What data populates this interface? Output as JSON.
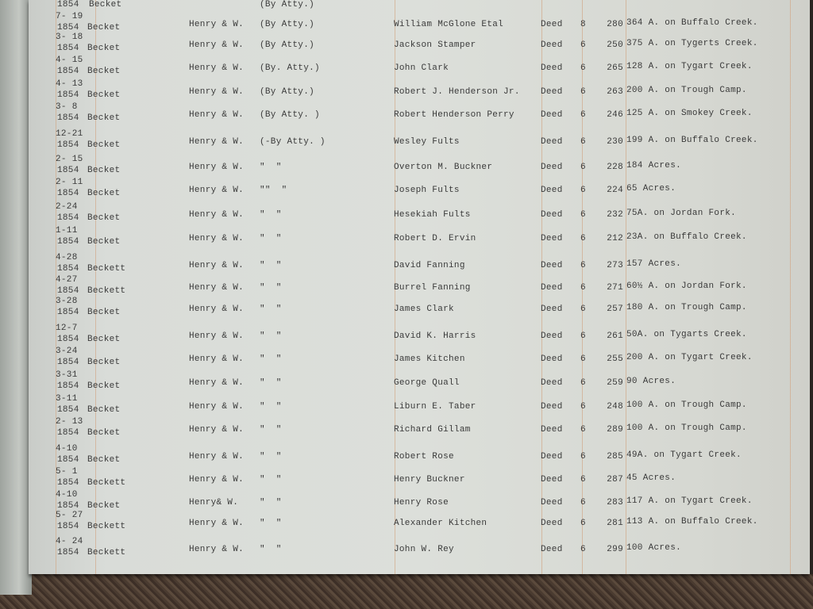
{
  "top_partial_row": {
    "year": "1854",
    "surname": "Becket",
    "note": "(By Atty.)"
  },
  "rows": [
    {
      "date": "7- 19",
      "year": "1854",
      "surname": "Becket",
      "grantor": "Henry & W.",
      "note": "(By Atty.)",
      "grantee": "William McGlone Etal",
      "type": "Deed",
      "book": "8",
      "page": "280",
      "description": "364 A. on Buffalo Creek."
    },
    {
      "date": "3- 18",
      "year": "1854",
      "surname": "Becket",
      "grantor": "Henry & W.",
      "note": "(By Atty.)",
      "grantee": "Jackson Stamper",
      "type": "Deed",
      "book": "6",
      "page": "250",
      "description": "375 A. on Tygerts Creek."
    },
    {
      "date": "4- 15",
      "year": "1854",
      "surname": "Becket",
      "grantor": "Henry & W.",
      "note": "(By. Atty.)",
      "grantee": "John Clark",
      "type": "Deed",
      "book": "6",
      "page": "265",
      "description": "128 A. on Tygart Creek."
    },
    {
      "date": "4- 13",
      "year": "1854",
      "surname": "Becket",
      "grantor": "Henry & W.",
      "note": "(By Atty.)",
      "grantee": "Robert J. Henderson Jr.",
      "type": "Deed",
      "book": "6",
      "page": "263",
      "description": "200 A. on Trough Camp."
    },
    {
      "date": "3- 8",
      "year": "1854",
      "surname": "Becket",
      "grantor": "Henry & W.",
      "note": "(By Atty. )",
      "grantee": "Robert Henderson Perry",
      "type": "Deed",
      "book": "6",
      "page": "246",
      "description": "125 A. on Smokey Creek."
    },
    {
      "date": "12-21",
      "year": "1854",
      "surname": "Becket",
      "grantor": "Henry & W.",
      "note": "(-By Atty. )",
      "grantee": "Wesley Fults",
      "type": "Deed",
      "book": "6",
      "page": "230",
      "description": "199 A. on Buffalo Creek."
    },
    {
      "date": "2- 15",
      "year": "1854",
      "surname": "Becket",
      "grantor": "Henry & W.",
      "note": "\"  \"",
      "grantee": "Overton M. Buckner",
      "type": "Deed",
      "book": "6",
      "page": "228",
      "description": "184 Acres."
    },
    {
      "date": "2- 11",
      "year": "1854",
      "surname": "Becket",
      "grantor": "Henry & W.",
      "note": "\"\"  \"",
      "grantee": "Joseph Fults",
      "type": "Deed",
      "book": "6",
      "page": "224",
      "description": "65 Acres."
    },
    {
      "date": "2-24",
      "year": "1854",
      "surname": "Becket",
      "grantor": "Henry & W.",
      "note": "\"  \"",
      "grantee": "Hesekiah Fults",
      "type": "Deed",
      "book": "6",
      "page": "232",
      "description": "75A. on Jordan Fork."
    },
    {
      "date": "1-11",
      "year": "1854",
      "surname": "Becket",
      "grantor": "Henry & W.",
      "note": "\"  \"",
      "grantee": "Robert D. Ervin",
      "type": "Deed",
      "book": "6",
      "page": "212",
      "description": "23A. on Buffalo Creek."
    },
    {
      "date": "4-28",
      "year": "1854",
      "surname": "Beckett",
      "grantor": "Henry & W.",
      "note": "\"  \"",
      "grantee": "David Fanning",
      "type": "Deed",
      "book": "6",
      "page": "273",
      "description": "157 Acres."
    },
    {
      "date": "4-27",
      "year": "1854",
      "surname": "Beckett",
      "grantor": "Henry & W.",
      "note": "\"  \"",
      "grantee": "Burrel Fanning",
      "type": "Deed",
      "book": "6",
      "page": "271",
      "description": "60½ A. on Jordan Fork."
    },
    {
      "date": "3-28",
      "year": "1854",
      "surname": "Becket",
      "grantor": "Henry & W.",
      "note": "\"  \"",
      "grantee": "James Clark",
      "type": "Deed",
      "book": "6",
      "page": "257",
      "description": "180 A. on Trough Camp."
    },
    {
      "date": "12-7",
      "year": "1854",
      "surname": "Becket",
      "grantor": "Henry & W.",
      "note": "\"  \"",
      "grantee": "David K. Harris",
      "type": "Deed",
      "book": "6",
      "page": "261",
      "description": "50A. on Tygarts Creek."
    },
    {
      "date": "3-24",
      "year": "1854",
      "surname": "Becket",
      "grantor": "Henry & W.",
      "note": "\"  \"",
      "grantee": "James Kitchen",
      "type": "Deed",
      "book": "6",
      "page": "255",
      "description": "200 A. on Tygart Creek."
    },
    {
      "date": "3-31",
      "year": "1854",
      "surname": "Becket",
      "grantor": "Henry & W.",
      "note": "\"  \"",
      "grantee": "George Quall",
      "type": "Deed",
      "book": "6",
      "page": "259",
      "description": "90 Acres."
    },
    {
      "date": "3-11",
      "year": "1854",
      "surname": "Becket",
      "grantor": "Henry & W.",
      "note": "\"  \"",
      "grantee": "Liburn E. Taber",
      "type": "Deed",
      "book": "6",
      "page": "248",
      "description": "100 A. on Trough Camp."
    },
    {
      "date": "2- 13",
      "year": "1854",
      "surname": "Becket",
      "grantor": "Henry & W.",
      "note": "\"  \"",
      "grantee": "Richard Gillam",
      "type": "Deed",
      "book": "6",
      "page": "289",
      "description": "100 A. on Trough Camp."
    },
    {
      "date": "4-10",
      "year": "1854",
      "surname": "Becket",
      "grantor": "Henry & W.",
      "note": "\"  \"",
      "grantee": "Robert Rose",
      "type": "Deed",
      "book": "6",
      "page": "285",
      "description": "49A. on Tygart Creek."
    },
    {
      "date": "5- 1",
      "year": "1854",
      "surname": "Beckett",
      "grantor": "Henry & W.",
      "note": "\"  \"",
      "grantee": "Henry Buckner",
      "type": "Deed",
      "book": "6",
      "page": "287",
      "description": "45 Acres."
    },
    {
      "date": "4-10",
      "year": "1854",
      "surname": "Becket",
      "grantor": "Henry& W.",
      "note": "\"  \"",
      "grantee": "Henry Rose",
      "type": "Deed",
      "book": "6",
      "page": "283",
      "description": "117 A. on Tygart Creek."
    },
    {
      "date": "5- 27",
      "year": "1854",
      "surname": "Beckett",
      "grantor": "Henry & W.",
      "note": "\"  \"",
      "grantee": "Alexander Kitchen",
      "type": "Deed",
      "book": "6",
      "page": "281",
      "description": "113 A. on Buffalo Creek."
    },
    {
      "date": "4- 24",
      "year": "1854",
      "surname": "Beckett",
      "grantor": "Henry & W.",
      "note": "\"  \"",
      "grantee": "John W. Rey",
      "type": "Deed",
      "book": "6",
      "page": "299",
      "description": "100 Acres."
    }
  ]
}
